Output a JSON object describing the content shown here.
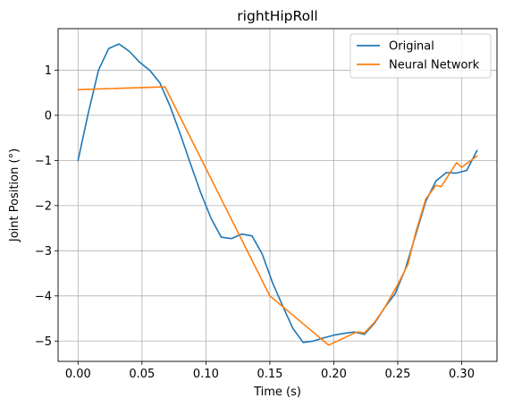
{
  "chart_data": {
    "type": "line",
    "title": "rightHipRoll",
    "xlabel": "Time (s)",
    "ylabel": "Joint Position (°)",
    "xlim": [
      -0.0156,
      0.3276
    ],
    "ylim": [
      -5.45,
      1.92
    ],
    "xticks": [
      0.0,
      0.05,
      0.1,
      0.15,
      0.2,
      0.25,
      0.3
    ],
    "xtick_labels": [
      "0.00",
      "0.05",
      "0.10",
      "0.15",
      "0.20",
      "0.25",
      "0.30"
    ],
    "yticks": [
      -5,
      -4,
      -3,
      -2,
      -1,
      0,
      1
    ],
    "ytick_labels": [
      "−5",
      "−4",
      "−3",
      "−2",
      "−1",
      "0",
      "1"
    ],
    "grid": true,
    "legend_position": "top-right",
    "series": [
      {
        "name": "Original",
        "color": "#1f77b4",
        "points": [
          [
            0.0,
            -1.0
          ],
          [
            0.008,
            0.05
          ],
          [
            0.016,
            1.0
          ],
          [
            0.024,
            1.48
          ],
          [
            0.032,
            1.58
          ],
          [
            0.04,
            1.42
          ],
          [
            0.048,
            1.18
          ],
          [
            0.056,
            1.0
          ],
          [
            0.064,
            0.72
          ],
          [
            0.072,
            0.2
          ],
          [
            0.08,
            -0.42
          ],
          [
            0.088,
            -1.08
          ],
          [
            0.096,
            -1.72
          ],
          [
            0.104,
            -2.28
          ],
          [
            0.112,
            -2.7
          ],
          [
            0.12,
            -2.73
          ],
          [
            0.128,
            -2.63
          ],
          [
            0.136,
            -2.67
          ],
          [
            0.144,
            -3.07
          ],
          [
            0.152,
            -3.7
          ],
          [
            0.16,
            -4.22
          ],
          [
            0.168,
            -4.72
          ],
          [
            0.176,
            -5.03
          ],
          [
            0.184,
            -5.0
          ],
          [
            0.192,
            -4.93
          ],
          [
            0.2,
            -4.87
          ],
          [
            0.208,
            -4.83
          ],
          [
            0.216,
            -4.8
          ],
          [
            0.224,
            -4.85
          ],
          [
            0.232,
            -4.6
          ],
          [
            0.24,
            -4.25
          ],
          [
            0.248,
            -3.95
          ],
          [
            0.256,
            -3.4
          ],
          [
            0.264,
            -2.65
          ],
          [
            0.272,
            -1.9
          ],
          [
            0.28,
            -1.45
          ],
          [
            0.288,
            -1.27
          ],
          [
            0.296,
            -1.28
          ],
          [
            0.304,
            -1.22
          ],
          [
            0.312,
            -0.78
          ]
        ]
      },
      {
        "name": "Neural Network",
        "color": "#ff7f0e",
        "points": [
          [
            0.0,
            0.57
          ],
          [
            0.068,
            0.63
          ],
          [
            0.15,
            -4.0
          ],
          [
            0.196,
            -5.09
          ],
          [
            0.218,
            -4.8
          ],
          [
            0.224,
            -4.82
          ],
          [
            0.232,
            -4.58
          ],
          [
            0.24,
            -4.25
          ],
          [
            0.25,
            -3.75
          ],
          [
            0.258,
            -3.3
          ],
          [
            0.264,
            -2.6
          ],
          [
            0.272,
            -1.85
          ],
          [
            0.28,
            -1.55
          ],
          [
            0.284,
            -1.58
          ],
          [
            0.296,
            -1.05
          ],
          [
            0.3,
            -1.15
          ],
          [
            0.312,
            -0.9
          ]
        ]
      }
    ]
  }
}
